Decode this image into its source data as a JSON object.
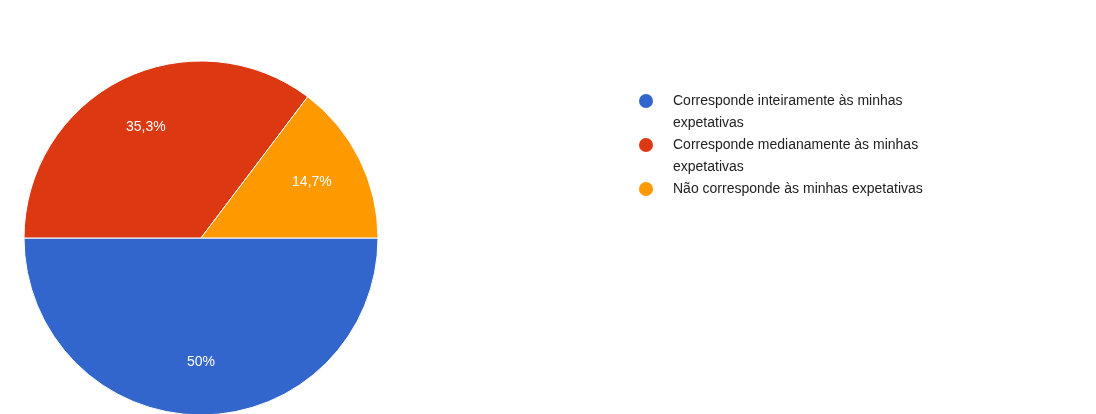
{
  "chart_data": {
    "type": "pie",
    "categories": [
      "Corresponde inteiramente às minhas expetativas",
      "Corresponde medianamente às minhas expetativas",
      "Não corresponde às minhas expetativas"
    ],
    "values": [
      50,
      35.3,
      14.7
    ],
    "colors": [
      "#3366cc",
      "#dc3912",
      "#ff9900"
    ],
    "value_labels": [
      "50%",
      "35,3%",
      "14,7%"
    ],
    "legend": "right"
  }
}
